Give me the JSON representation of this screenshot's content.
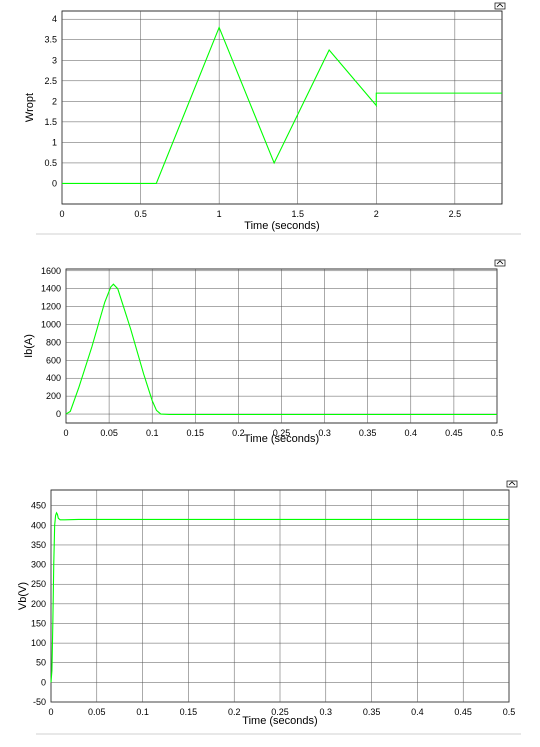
{
  "chart_data": [
    {
      "type": "line",
      "xlabel": "Time (seconds)",
      "ylabel": "Wropt",
      "xlim": [
        0,
        2.8
      ],
      "ylim": [
        -0.5,
        4.2
      ],
      "xticks": [
        0,
        0.5,
        1,
        1.5,
        2,
        2.5
      ],
      "xtick_labels": [
        "0",
        "0.5",
        "1",
        "1.5",
        "2",
        "2.5"
      ],
      "yticks": [
        0,
        0.5,
        1,
        1.5,
        2,
        2.5,
        3,
        3.5,
        4
      ],
      "ytick_labels": [
        "0",
        "0.5",
        "1",
        "1.5",
        "2",
        "2.5",
        "3",
        "3.5",
        "4"
      ],
      "grid": true,
      "line_color": "#00ff00",
      "series": [
        {
          "x": [
            0,
            0.6,
            1.0,
            1.35,
            1.7,
            2.0,
            2.0,
            2.8
          ],
          "y": [
            0,
            0,
            3.8,
            0.5,
            3.25,
            1.9,
            2.2,
            2.2
          ]
        }
      ]
    },
    {
      "type": "line",
      "xlabel": "Time (seconds)",
      "ylabel": "Ib(A)",
      "xlim": [
        0,
        0.5
      ],
      "ylim": [
        -100,
        1620
      ],
      "xticks": [
        0,
        0.05,
        0.1,
        0.15,
        0.2,
        0.25,
        0.3,
        0.35,
        0.4,
        0.45,
        0.5
      ],
      "xtick_labels": [
        "0",
        "0.05",
        "0.1",
        "0.15",
        "0.2",
        "0.25",
        "0.3",
        "0.35",
        "0.4",
        "0.45",
        "0.5"
      ],
      "yticks": [
        0,
        200,
        400,
        600,
        800,
        1000,
        1200,
        1400,
        1600
      ],
      "ytick_labels": [
        "0",
        "200",
        "400",
        "600",
        "800",
        "1000",
        "1200",
        "1400",
        "1600"
      ],
      "grid": true,
      "line_color": "#00ff00",
      "series": [
        {
          "x": [
            0,
            0.005,
            0.015,
            0.03,
            0.045,
            0.052,
            0.055,
            0.06,
            0.075,
            0.09,
            0.1,
            0.105,
            0.11,
            0.12,
            0.5
          ],
          "y": [
            0,
            30,
            300,
            750,
            1250,
            1420,
            1450,
            1400,
            950,
            450,
            150,
            40,
            0,
            -5,
            -5
          ]
        }
      ]
    },
    {
      "type": "line",
      "xlabel": "Time (seconds)",
      "ylabel": "Vb(V)",
      "xlim": [
        0,
        0.5
      ],
      "ylim": [
        -50,
        490
      ],
      "xticks": [
        0,
        0.05,
        0.1,
        0.15,
        0.2,
        0.25,
        0.3,
        0.35,
        0.4,
        0.45,
        0.5
      ],
      "xtick_labels": [
        "0",
        "0.05",
        "0.1",
        "0.15",
        "0.2",
        "0.25",
        "0.3",
        "0.35",
        "0.4",
        "0.45",
        "0.5"
      ],
      "yticks": [
        -50,
        0,
        50,
        100,
        150,
        200,
        250,
        300,
        350,
        400,
        450
      ],
      "ytick_labels": [
        "-50",
        "0",
        "50",
        "100",
        "150",
        "200",
        "250",
        "300",
        "350",
        "400",
        "450"
      ],
      "grid": true,
      "line_color": "#00ff00",
      "series": [
        {
          "x": [
            0,
            0.001,
            0.002,
            0.003,
            0.004,
            0.005,
            0.006,
            0.007,
            0.008,
            0.01,
            0.015,
            0.03,
            0.5
          ],
          "y": [
            0,
            30,
            150,
            300,
            400,
            425,
            432,
            428,
            418,
            414,
            414,
            415,
            415
          ]
        }
      ]
    }
  ]
}
